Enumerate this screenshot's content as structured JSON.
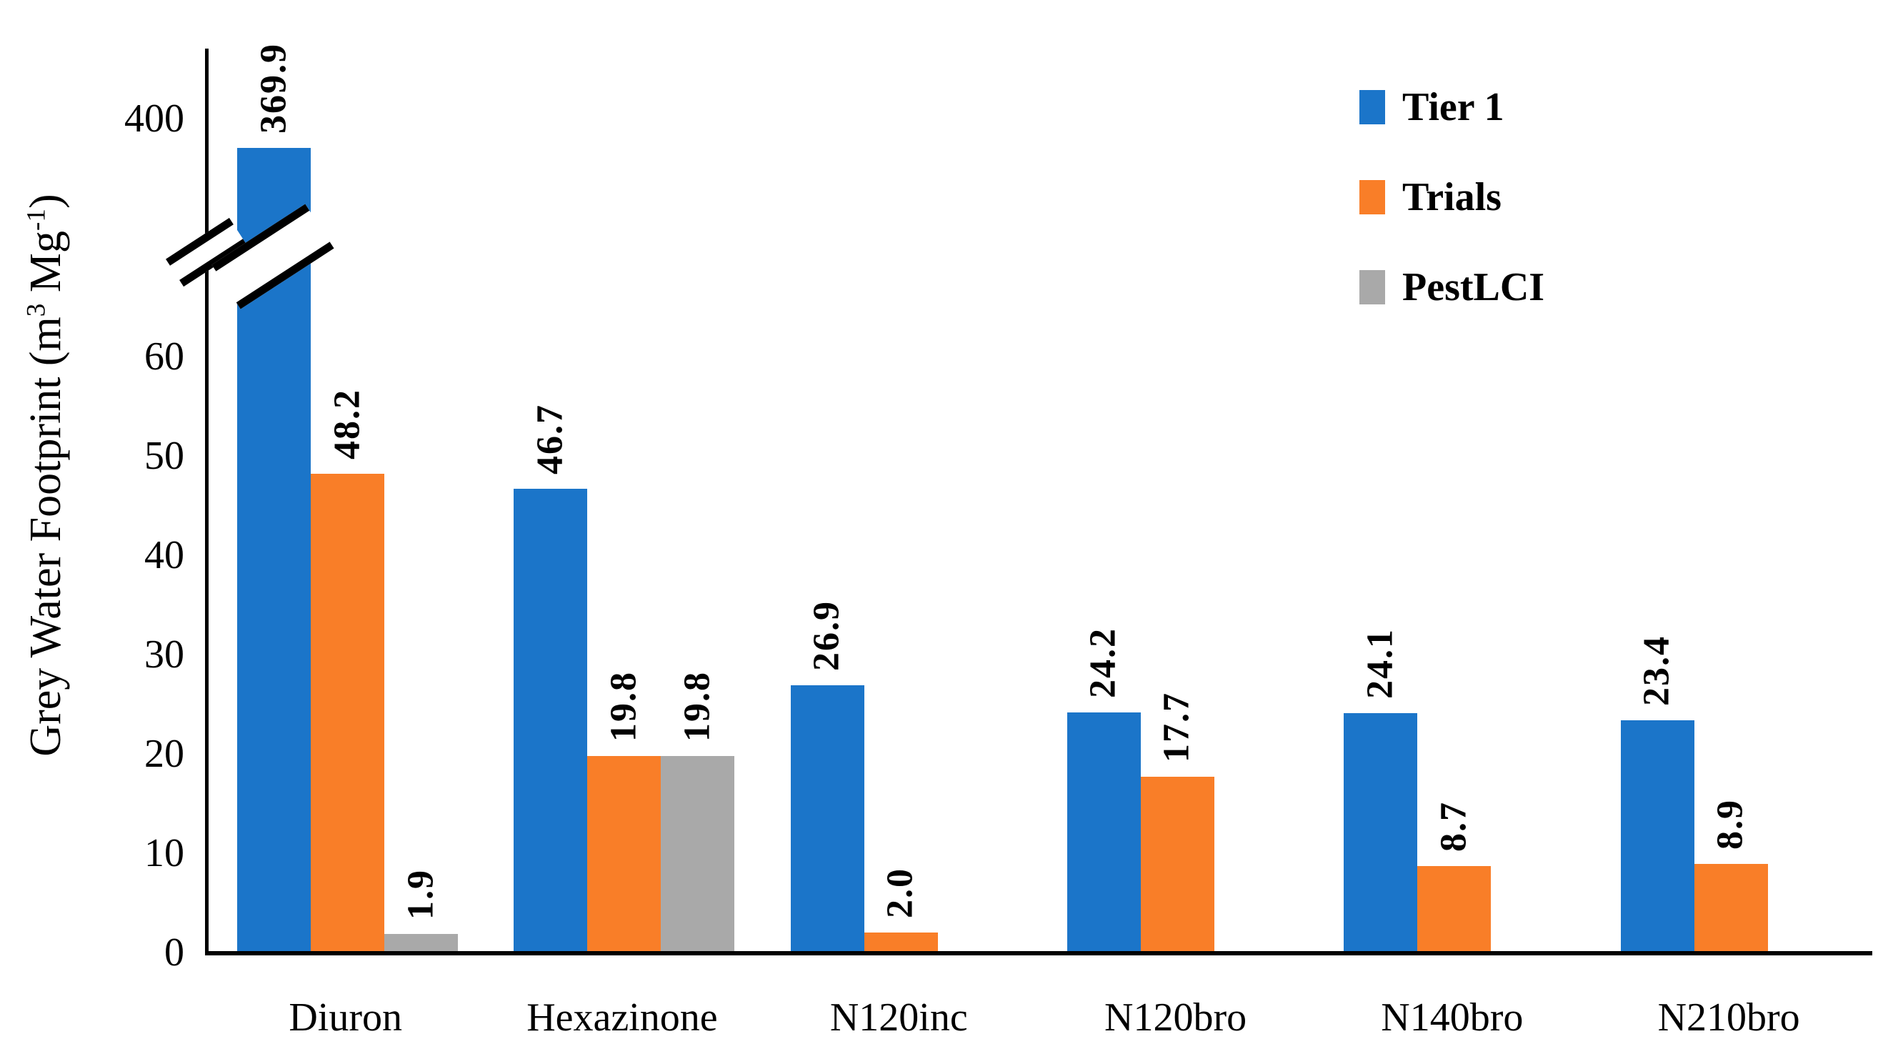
{
  "chart_data": {
    "type": "bar",
    "title": "",
    "ylabel": "Grey Water Footprint (m³ Mg⁻¹)",
    "ylabel_parts": [
      {
        "text": "Grey Water Footprint (m"
      },
      {
        "sup": "3"
      },
      {
        "text": " Mg"
      },
      {
        "sup": "-1"
      },
      {
        "text": ")"
      }
    ],
    "xlabel": "",
    "categories": [
      "Diuron",
      "Hexazinone",
      "N120inc",
      "N120bro",
      "N140bro",
      "N210bro"
    ],
    "series": [
      {
        "name": "Tier 1",
        "color": "#1B75C9",
        "values": [
          369.9,
          46.7,
          26.9,
          24.2,
          24.1,
          23.4
        ]
      },
      {
        "name": "Trials",
        "color": "#F97E28",
        "values": [
          48.2,
          19.8,
          2.0,
          17.7,
          8.7,
          8.9
        ]
      },
      {
        "name": "PestLCI",
        "color": "#A9A9A9",
        "values": [
          1.9,
          19.8,
          null,
          null,
          null,
          null
        ]
      }
    ],
    "value_label_format": "one_decimal",
    "value_label_rotation": "rotate-text-up",
    "y_axis": {
      "lower_ticks": [
        0,
        10,
        20,
        30,
        40,
        50,
        60
      ],
      "upper_tick": 400,
      "break_between": [
        60,
        400
      ]
    },
    "legend": [
      "Tier 1",
      "Trials",
      "PestLCI"
    ],
    "legend_position": "top-right",
    "grid": false,
    "background": "#FFFFFF",
    "text_color": "#000000",
    "axis_color": "#000000"
  }
}
